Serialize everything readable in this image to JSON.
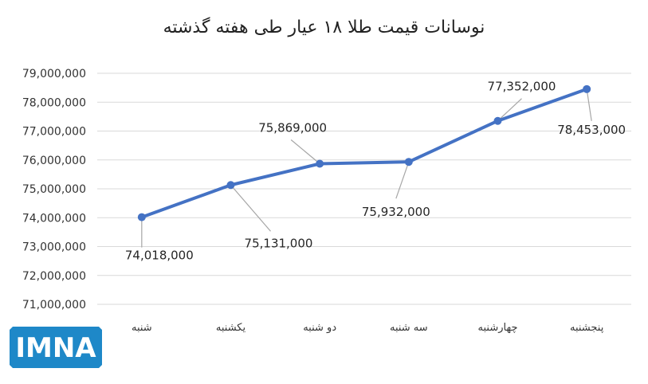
{
  "chart_data": {
    "type": "line",
    "title": "نوسانات قیمت طلا ۱۸ عیار طی هفته گذشته",
    "categories": [
      "شنبه",
      "یکشنبه",
      "دو شنبه",
      "سه شنبه",
      "چهارشنبه",
      "پنجشنبه"
    ],
    "values": [
      74018000,
      75131000,
      75869000,
      75932000,
      77352000,
      78453000
    ],
    "data_labels": [
      "74,018,000",
      "75,131,000",
      "75,869,000",
      "75,932,000",
      "77,352,000",
      "78,453,000"
    ],
    "ylim": [
      71000000,
      79000000
    ],
    "yticks": [
      "71,000,000",
      "72,000,000",
      "73,000,000",
      "74,000,000",
      "75,000,000",
      "76,000,000",
      "77,000,000",
      "78,000,000",
      "79,000,000"
    ],
    "xlabel": "",
    "ylabel": "",
    "grid": true,
    "legend": "none",
    "line_color": "#4472C4",
    "grid_color": "#D9D9D9"
  },
  "logo": {
    "text": "IMNA",
    "color": "#1E88C8"
  }
}
